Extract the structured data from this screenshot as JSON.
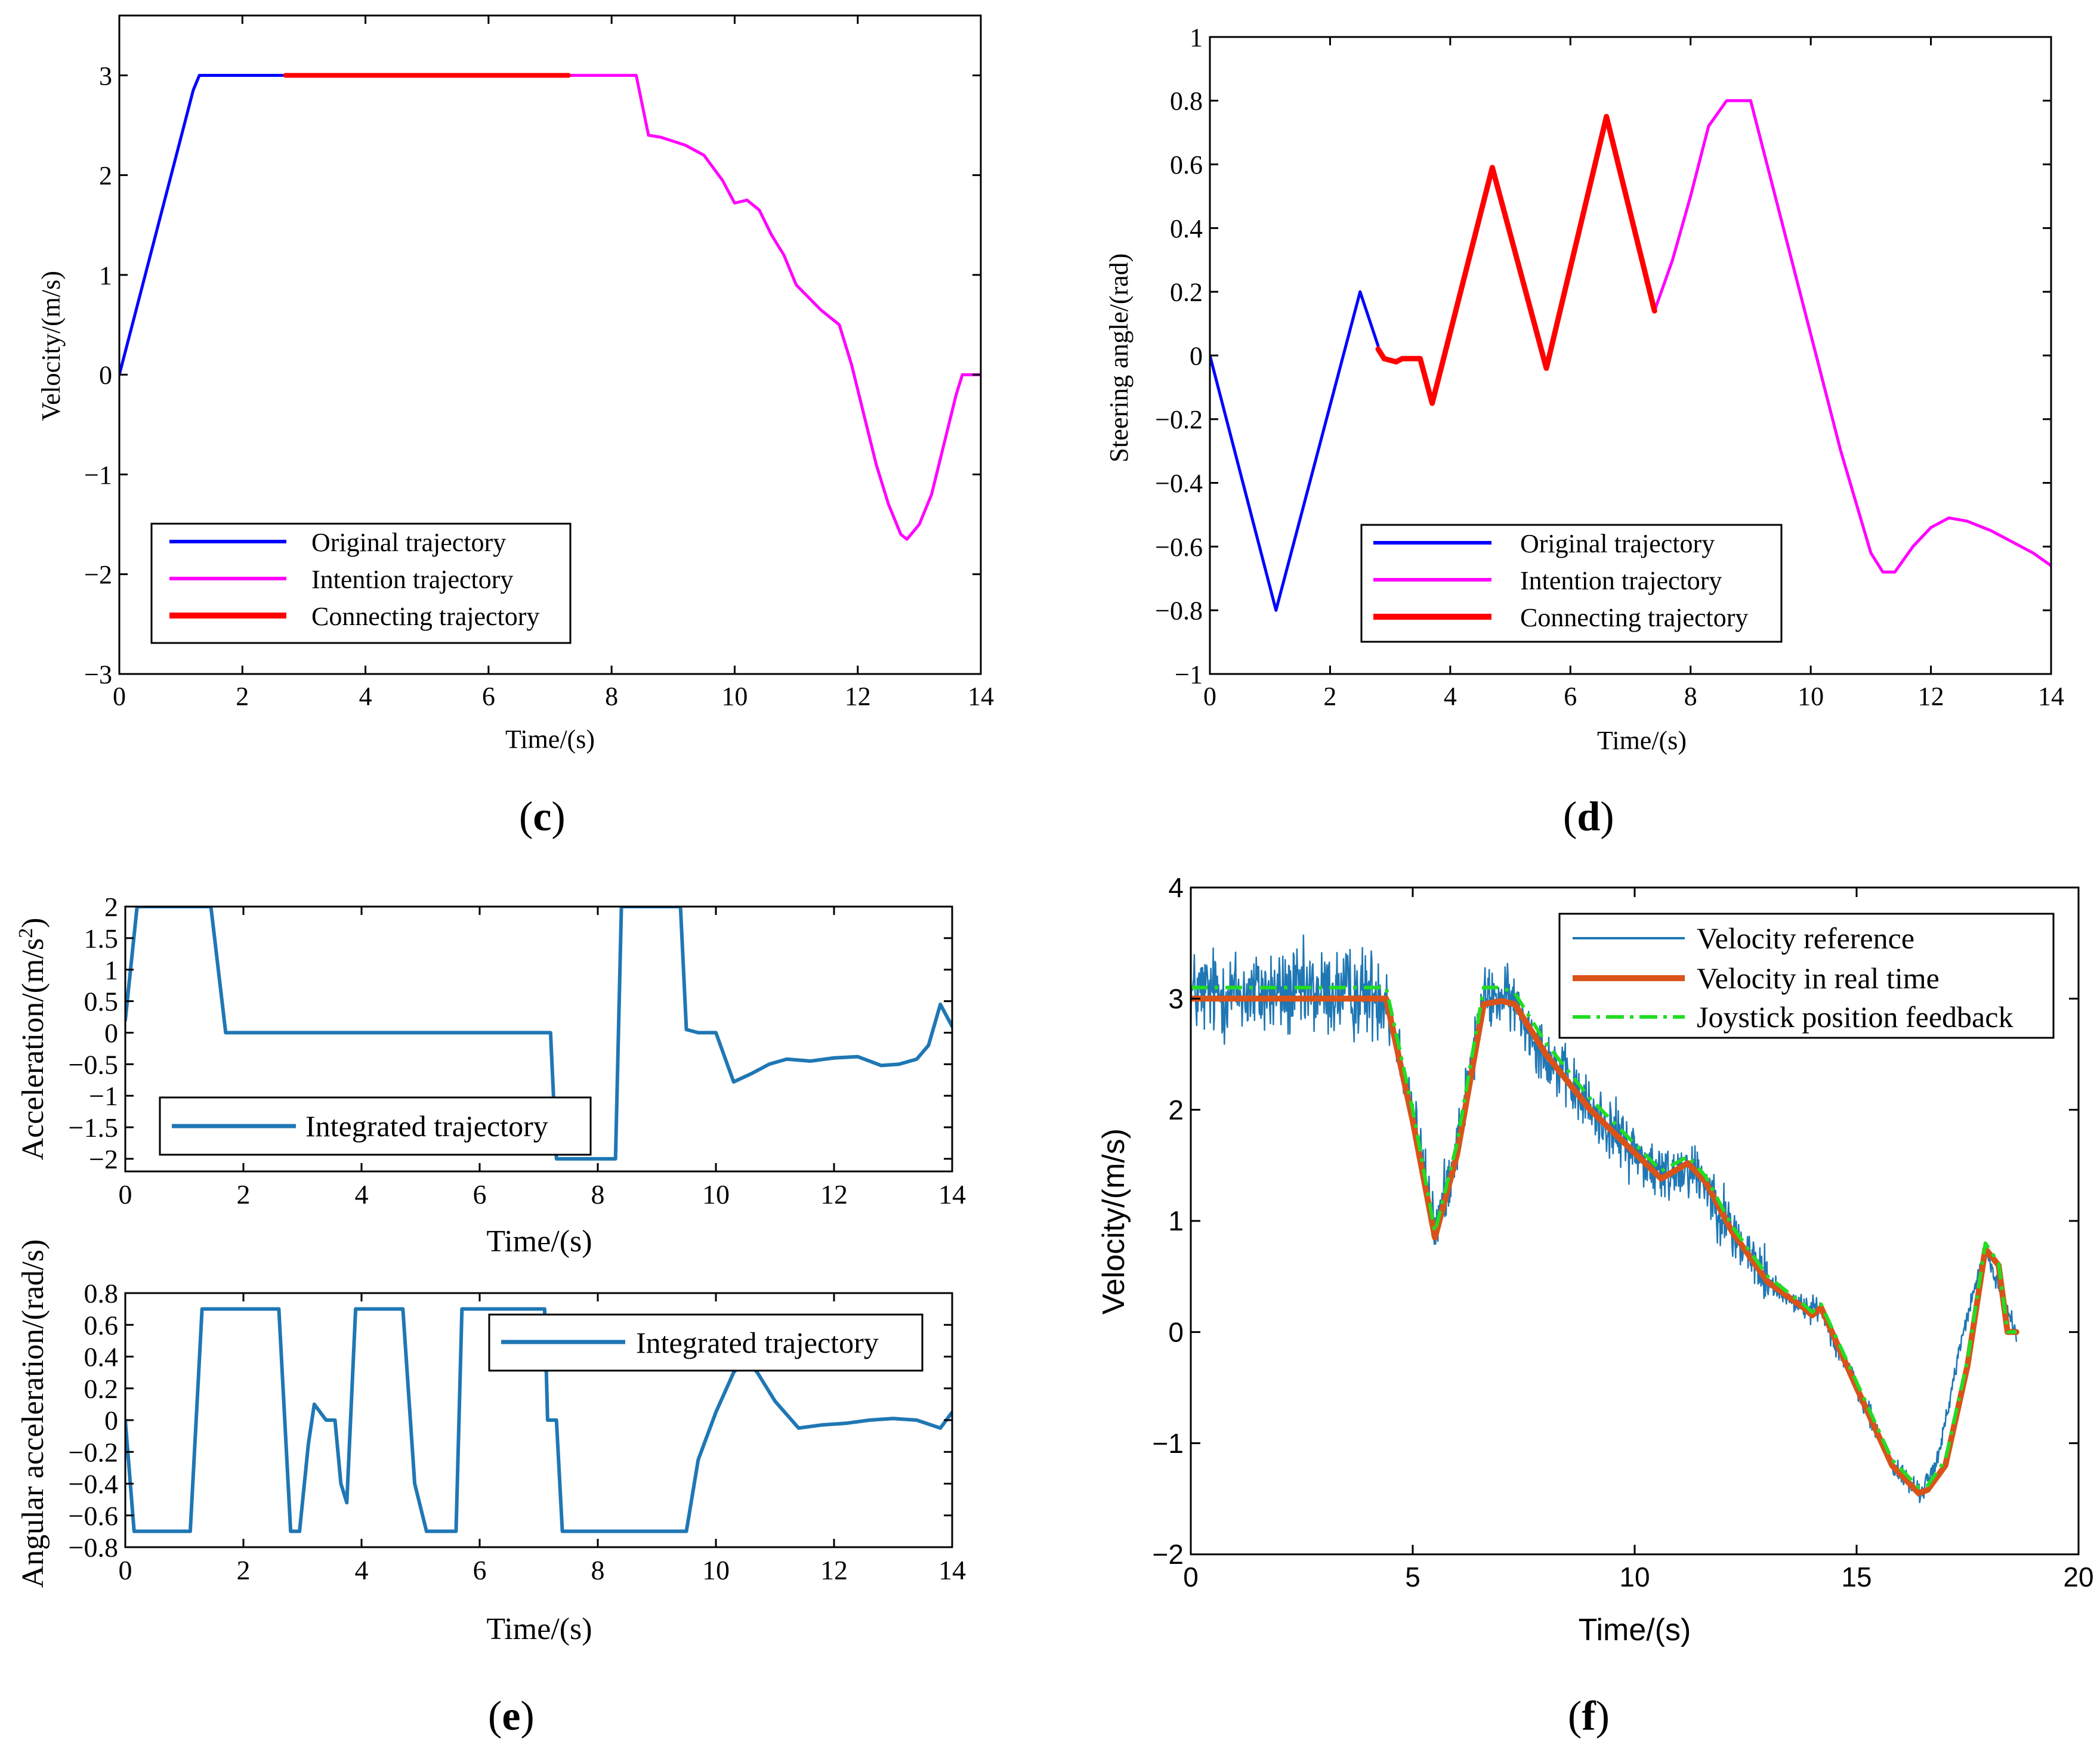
{
  "panels": [
    {
      "id": "c",
      "label_open": "(",
      "label_letter": "c",
      "label_close": ")"
    },
    {
      "id": "d",
      "label_open": "(",
      "label_letter": "d",
      "label_close": ")"
    },
    {
      "id": "e",
      "label_open": "(",
      "label_letter": "e",
      "label_close": ")"
    },
    {
      "id": "f",
      "label_open": "(",
      "label_letter": "f",
      "label_close": ")"
    }
  ],
  "colors": {
    "original": "#0000FF",
    "intention": "#FF00FF",
    "connecting": "#FF0000",
    "integrated": "#1F77B4",
    "reference": "#1F77B4",
    "realtime": "#D95319",
    "joystick": "#22DD22"
  },
  "chart_data": [
    {
      "id": "c",
      "type": "line",
      "xlabel": "Time/(s)",
      "ylabel": "Velocity/(m/s)",
      "xlim": [
        0,
        14
      ],
      "ylim": [
        -3,
        3.6
      ],
      "xticks": [
        0,
        2,
        4,
        6,
        8,
        10,
        12,
        14
      ],
      "xtick_labels": [
        "0",
        "2",
        "4",
        "6",
        "8",
        "10",
        "12",
        "14"
      ],
      "yticks": [
        -3,
        -2,
        -1,
        0,
        1,
        2,
        3
      ],
      "ytick_labels": [
        "−3",
        "−2",
        "−1",
        "0",
        "1",
        "2",
        "3"
      ],
      "legend_position": "bottom-left",
      "series": [
        {
          "name": "Original trajectory",
          "color": "#0000FF",
          "x": [
            0,
            1.2,
            1.3,
            2.7
          ],
          "y": [
            0,
            2.85,
            3,
            3
          ]
        },
        {
          "name": "Intention trajectory",
          "color": "#FF00FF",
          "x": [
            7.3,
            8.4,
            8.6,
            8.8,
            9.2,
            9.5,
            9.8,
            10.0,
            10.2,
            10.4,
            10.6,
            10.8,
            11.0,
            11.4,
            11.7,
            11.9,
            12.1,
            12.3,
            12.5,
            12.7,
            12.8,
            13.0,
            13.2,
            13.4,
            13.6,
            13.7,
            14.0
          ],
          "y": [
            3,
            3,
            2.4,
            2.38,
            2.3,
            2.2,
            1.95,
            1.72,
            1.75,
            1.65,
            1.4,
            1.2,
            0.9,
            0.65,
            0.5,
            0.1,
            -0.4,
            -0.9,
            -1.3,
            -1.6,
            -1.65,
            -1.5,
            -1.2,
            -0.7,
            -0.2,
            0,
            0
          ]
        },
        {
          "name": "Connecting trajectory",
          "color": "#FF0000",
          "x": [
            2.7,
            7.3
          ],
          "y": [
            3,
            3
          ]
        }
      ]
    },
    {
      "id": "d",
      "type": "line",
      "xlabel": "Time/(s)",
      "ylabel": "Steering angle/(rad)",
      "xlim": [
        0,
        14
      ],
      "ylim": [
        -1,
        1
      ],
      "xticks": [
        0,
        2,
        4,
        6,
        8,
        10,
        12,
        14
      ],
      "xtick_labels": [
        "0",
        "2",
        "4",
        "6",
        "8",
        "10",
        "12",
        "14"
      ],
      "yticks": [
        -1,
        -0.8,
        -0.6,
        -0.4,
        -0.2,
        0,
        0.2,
        0.4,
        0.6,
        0.8,
        1
      ],
      "ytick_labels": [
        "−1",
        "−0.8",
        "−0.6",
        "−0.4",
        "−0.2",
        "0",
        "0.2",
        "0.4",
        "0.6",
        "0.8",
        "1"
      ],
      "legend_position": "bottom-left",
      "series": [
        {
          "name": "Original trajectory",
          "color": "#0000FF",
          "x": [
            0,
            1.1,
            2.5,
            2.8
          ],
          "y": [
            0,
            -0.8,
            0.2,
            0.03
          ]
        },
        {
          "name": "Intention trajectory",
          "color": "#FF00FF",
          "x": [
            7.4,
            7.7,
            8.0,
            8.3,
            8.6,
            9.0,
            10.5,
            11.0,
            11.2,
            11.4,
            11.7,
            12.0,
            12.3,
            12.6,
            13.0,
            13.3,
            13.7,
            14.0
          ],
          "y": [
            0.14,
            0.3,
            0.5,
            0.72,
            0.8,
            0.8,
            -0.3,
            -0.62,
            -0.68,
            -0.68,
            -0.6,
            -0.54,
            -0.51,
            -0.52,
            -0.55,
            -0.58,
            -0.62,
            -0.66
          ]
        },
        {
          "name": "Connecting trajectory",
          "color": "#FF0000",
          "x": [
            2.8,
            2.9,
            3.1,
            3.2,
            3.3,
            3.5,
            3.7,
            4.7,
            5.6,
            6.6,
            7.4
          ],
          "y": [
            0.02,
            -0.01,
            -0.02,
            -0.01,
            -0.01,
            -0.01,
            -0.15,
            0.59,
            -0.04,
            0.75,
            0.14
          ]
        }
      ]
    },
    {
      "id": "e1",
      "type": "line",
      "xlabel": "Time/(s)",
      "ylabel": "Acceleration/(m/s",
      "ylabel_sup": "2",
      "ylabel_close": ")",
      "xlim": [
        0,
        14
      ],
      "ylim": [
        -2.2,
        2
      ],
      "xticks": [
        0,
        2,
        4,
        6,
        8,
        10,
        12,
        14
      ],
      "xtick_labels": [
        "0",
        "2",
        "4",
        "6",
        "8",
        "10",
        "12",
        "14"
      ],
      "yticks": [
        -2,
        -1.5,
        -1,
        -0.5,
        0,
        0.5,
        1,
        1.5,
        2
      ],
      "ytick_labels": [
        "−2",
        "−1.5",
        "−1",
        "−0.5",
        "0",
        "0.5",
        "1",
        "1.5",
        "2"
      ],
      "legend_position": "bottom-left",
      "series": [
        {
          "name": "Integrated trajectory",
          "color": "#1F77B4",
          "x": [
            0,
            0.2,
            1.45,
            1.7,
            7.2,
            7.3,
            8.3,
            8.4,
            9.4,
            9.5,
            9.7,
            10.0,
            10.3,
            10.6,
            10.9,
            11.2,
            11.6,
            12.0,
            12.4,
            12.8,
            13.1,
            13.4,
            13.6,
            13.8,
            14.0
          ],
          "y": [
            0.2,
            2,
            2,
            0,
            0,
            -2,
            -2,
            2,
            2,
            0.05,
            0,
            0,
            -0.78,
            -0.65,
            -0.5,
            -0.42,
            -0.45,
            -0.4,
            -0.38,
            -0.52,
            -0.5,
            -0.42,
            -0.2,
            0.45,
            0.1
          ]
        }
      ]
    },
    {
      "id": "e2",
      "type": "line",
      "xlabel": "Time/(s)",
      "ylabel": "Angular acceleration/(rad/s)",
      "xlim": [
        0,
        14
      ],
      "ylim": [
        -0.8,
        0.8
      ],
      "xticks": [
        0,
        2,
        4,
        6,
        8,
        10,
        12,
        14
      ],
      "xtick_labels": [
        "0",
        "2",
        "4",
        "6",
        "8",
        "10",
        "12",
        "14"
      ],
      "yticks": [
        -0.8,
        -0.6,
        -0.4,
        -0.2,
        0,
        0.2,
        0.4,
        0.6,
        0.8
      ],
      "ytick_labels": [
        "−0.8",
        "−0.6",
        "−0.4",
        "−0.2",
        "0",
        "0.2",
        "0.4",
        "0.6",
        "0.8"
      ],
      "legend_position": "top-right",
      "series": [
        {
          "name": "Integrated trajectory",
          "color": "#1F77B4",
          "x": [
            0,
            0.15,
            1.1,
            1.3,
            2.6,
            2.8,
            2.95,
            3.1,
            3.2,
            3.4,
            3.55,
            3.65,
            3.75,
            3.9,
            4.7,
            4.9,
            5.1,
            5.6,
            5.7,
            7.1,
            7.15,
            7.3,
            7.4,
            9.5,
            9.7,
            10.0,
            10.3,
            10.5,
            10.7,
            11.0,
            11.4,
            11.8,
            12.2,
            12.6,
            13.0,
            13.4,
            13.8,
            14.0
          ],
          "y": [
            0,
            -0.7,
            -0.7,
            0.7,
            0.7,
            -0.7,
            -0.7,
            -0.15,
            0.1,
            0,
            0,
            -0.4,
            -0.52,
            0.7,
            0.7,
            -0.4,
            -0.7,
            -0.7,
            0.7,
            0.7,
            0,
            0,
            -0.7,
            -0.7,
            -0.25,
            0.05,
            0.3,
            0.38,
            0.3,
            0.12,
            -0.05,
            -0.03,
            -0.02,
            0.0,
            0.01,
            0.0,
            -0.05,
            0.05
          ]
        }
      ]
    },
    {
      "id": "f",
      "type": "line",
      "xlabel": "Time/(s)",
      "ylabel": "Velocity/(m/s)",
      "xlim": [
        0,
        20
      ],
      "ylim": [
        -2,
        4
      ],
      "xticks": [
        0,
        5,
        10,
        15,
        20
      ],
      "xtick_labels": [
        "0",
        "5",
        "10",
        "15",
        "20"
      ],
      "yticks": [
        -2,
        -1,
        0,
        1,
        2,
        3,
        4
      ],
      "ytick_labels": [
        "−2",
        "−1",
        "0",
        "1",
        "2",
        "3",
        "4"
      ],
      "legend_position": "top-right",
      "series": [
        {
          "name": "Velocity reference",
          "color": "#1F77B4",
          "style": "noisy",
          "noise_amp": [
            0.45,
            0.3
          ],
          "x": [
            0,
            4.4,
            5.0,
            5.5,
            6.0,
            6.6,
            7.2,
            8.0,
            9.0,
            10.6,
            11.2,
            11.6,
            12.2,
            13.0,
            13.8,
            14.2,
            15.0,
            15.8,
            16.4,
            16.8,
            17.4,
            17.9,
            18.1,
            18.6
          ],
          "y": [
            3.05,
            3.05,
            2.0,
            0.9,
            1.7,
            3.0,
            3.0,
            2.5,
            2.0,
            1.4,
            1.5,
            1.35,
            0.9,
            0.45,
            0.22,
            0.2,
            -0.5,
            -1.2,
            -1.45,
            -1.2,
            0.0,
            0.75,
            0.5,
            0.0
          ]
        },
        {
          "name": "Velocity in real time",
          "color": "#D95319",
          "style": "solid",
          "x": [
            0,
            4.4,
            5.0,
            5.5,
            6.0,
            6.6,
            7.0,
            7.3,
            8.0,
            9.0,
            10.6,
            11.2,
            11.6,
            12.2,
            13.0,
            13.8,
            14.0,
            14.2,
            15.0,
            15.8,
            16.4,
            16.6,
            17.0,
            17.5,
            17.9,
            18.2,
            18.4,
            18.6
          ],
          "y": [
            3.0,
            3.0,
            1.9,
            0.85,
            1.6,
            2.95,
            2.98,
            2.95,
            2.5,
            2.0,
            1.38,
            1.52,
            1.35,
            0.9,
            0.45,
            0.22,
            0.15,
            0.22,
            -0.5,
            -1.2,
            -1.45,
            -1.42,
            -1.2,
            -0.3,
            0.75,
            0.6,
            0.0,
            0.0
          ]
        },
        {
          "name": "Joystick position feedback",
          "color": "#22DD22",
          "style": "dashdot",
          "x": [
            0,
            4.4,
            5.0,
            5.5,
            6.0,
            6.6,
            7.0,
            7.3,
            8.0,
            9.0,
            10.6,
            11.2,
            11.6,
            12.2,
            13.0,
            13.8,
            14.0,
            14.2,
            15.0,
            15.8,
            16.4,
            16.6,
            17.0,
            17.5,
            17.9,
            18.2,
            18.4,
            18.6
          ],
          "y": [
            3.1,
            3.1,
            2.0,
            0.9,
            1.7,
            3.1,
            3.1,
            3.05,
            2.6,
            2.1,
            1.45,
            1.58,
            1.4,
            0.95,
            0.5,
            0.25,
            0.18,
            0.25,
            -0.45,
            -1.15,
            -1.4,
            -1.38,
            -1.15,
            -0.25,
            0.8,
            0.62,
            0.0,
            0.0
          ]
        }
      ]
    }
  ]
}
